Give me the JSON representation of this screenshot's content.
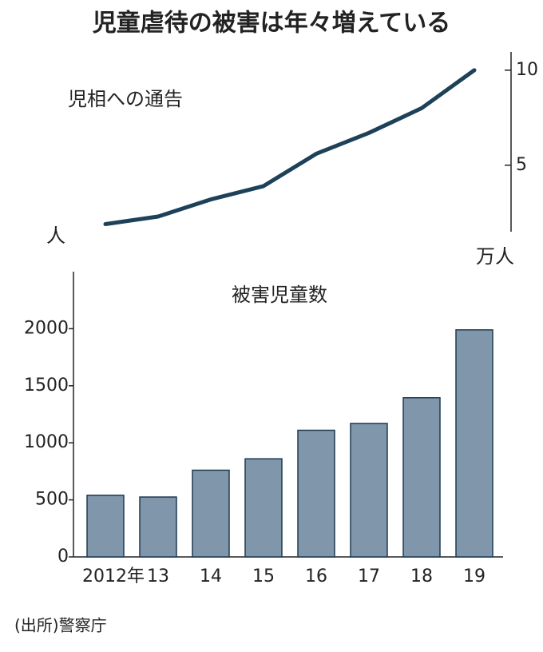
{
  "title": "児童虐待の被害は年々増えている",
  "source": "(出所)警察庁",
  "chart_data": [
    {
      "type": "line",
      "subtitle": "児相への通告",
      "unit_label": "万人",
      "left_label": "人",
      "values": [
        1.9,
        2.3,
        3.2,
        3.9,
        5.6,
        6.7,
        8.0,
        10.0
      ],
      "color": "#1d4158",
      "ylim": [
        1.5,
        10.75
      ],
      "yticks": [
        5,
        10
      ],
      "axis_side": "right"
    },
    {
      "type": "bar",
      "subtitle": "被害児童数",
      "categories": [
        "2012年",
        "13",
        "14",
        "15",
        "16",
        "17",
        "18",
        "19"
      ],
      "values": [
        540,
        525,
        760,
        860,
        1110,
        1170,
        1395,
        1990
      ],
      "color": "#8096ab",
      "ylim": [
        0,
        2500
      ],
      "yticks": [
        0,
        500,
        1000,
        1500,
        2000
      ]
    }
  ]
}
